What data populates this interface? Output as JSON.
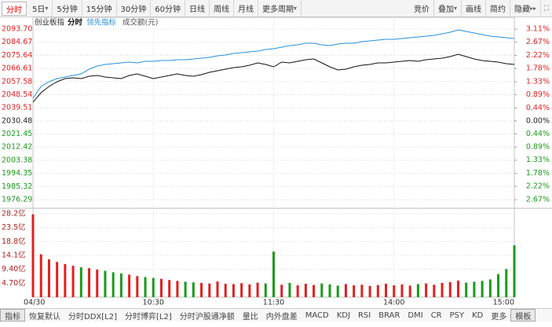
{
  "toolbar": {
    "left": [
      "分时",
      "5日",
      "5分钟",
      "15分钟",
      "30分钟",
      "60分钟",
      "日线",
      "周线",
      "月线",
      "更多周期"
    ],
    "right": [
      "竞价",
      "叠加",
      "画线",
      "简约",
      "隐藏"
    ]
  },
  "chart_data": [
    {
      "type": "line",
      "title": "创业板指",
      "xlim": [
        0,
        240
      ],
      "ylim": [
        1971.42,
        2098.57
      ],
      "y2lim": [
        -2.909,
        3.353
      ],
      "grid": true,
      "yticks": [
        {
          "value": 2093.7,
          "label": "2093.70"
        },
        2084.67,
        2075.64,
        2066.61,
        2057.58,
        2048.54,
        2039.51,
        2030.48,
        2021.45,
        2012.42,
        2003.38,
        1994.35,
        1985.32,
        1976.29
      ],
      "y2ticks": [
        {
          "value": 3.11,
          "label": "3.11%"
        },
        {
          "value": 2.67,
          "label": "2.67%"
        },
        {
          "value": 2.22,
          "label": "2.22%"
        },
        {
          "value": 1.78,
          "label": "1.78%"
        },
        {
          "value": 1.33,
          "label": "1.33%"
        },
        {
          "value": 0.89,
          "label": "0.89%"
        },
        {
          "value": 0.44,
          "label": "0.44%"
        },
        {
          "value": 0,
          "label": "0.00%"
        },
        {
          "value": -0.44,
          "label": "0.44%"
        },
        {
          "value": -0.89,
          "label": "0.89%"
        },
        {
          "value": -1.33,
          "label": "1.33%"
        },
        {
          "value": -1.78,
          "label": "1.78%"
        },
        {
          "value": -2.22,
          "label": "2.22%"
        },
        {
          "value": -2.67,
          "label": "2.67%"
        }
      ],
      "x": [
        0,
        4,
        8,
        12,
        16,
        20,
        24,
        28,
        32,
        36,
        40,
        44,
        48,
        52,
        56,
        60,
        64,
        68,
        72,
        76,
        80,
        84,
        88,
        92,
        96,
        100,
        104,
        108,
        112,
        116,
        120,
        124,
        128,
        132,
        136,
        140,
        144,
        148,
        152,
        156,
        160,
        164,
        168,
        172,
        176,
        180,
        184,
        188,
        192,
        196,
        200,
        204,
        208,
        212,
        216,
        220,
        224,
        228,
        232,
        236,
        240
      ],
      "series": [
        {
          "name": "分时",
          "color": "#111111",
          "values": [
            2043.39,
            2049.88,
            2054.21,
            2057.45,
            2059.62,
            2060.16,
            2059.62,
            2061.24,
            2061.78,
            2060.7,
            2060.16,
            2059.62,
            2061.78,
            2062.86,
            2061.24,
            2059.62,
            2060.7,
            2061.78,
            2062.86,
            2061.78,
            2061.24,
            2062.32,
            2063.94,
            2065.03,
            2066.11,
            2067.19,
            2067.73,
            2068.81,
            2070.44,
            2069.35,
            2067.73,
            2070.98,
            2070.44,
            2071.52,
            2072.6,
            2073.14,
            2070.44,
            2067.73,
            2065.57,
            2066.11,
            2067.73,
            2068.81,
            2069.35,
            2070.44,
            2070.44,
            2070.98,
            2071.52,
            2072.06,
            2071.52,
            2072.6,
            2073.14,
            2073.68,
            2074.76,
            2076.39,
            2074.76,
            2073.14,
            2072.06,
            2071.52,
            2070.98,
            2069.9,
            2069.35
          ]
        },
        {
          "name": "领先指标",
          "color": "#2a8fd8",
          "values": [
            2046.09,
            2054.21,
            2057.45,
            2059.62,
            2060.7,
            2061.78,
            2062.86,
            2066.11,
            2068.27,
            2069.35,
            2069.9,
            2070.44,
            2070.98,
            2070.44,
            2071.52,
            2071.52,
            2072.06,
            2072.06,
            2072.6,
            2072.6,
            2073.14,
            2073.68,
            2074.22,
            2075.31,
            2075.85,
            2076.93,
            2077.47,
            2078.01,
            2078.55,
            2079.63,
            2080.17,
            2081.26,
            2082.34,
            2082.88,
            2083.96,
            2083.96,
            2082.88,
            2082.34,
            2083.42,
            2083.96,
            2083.96,
            2085.04,
            2085.58,
            2086.13,
            2086.67,
            2086.67,
            2087.21,
            2087.75,
            2088.29,
            2088.83,
            2089.37,
            2090.45,
            2091.54,
            2093.16,
            2092.08,
            2090.99,
            2089.91,
            2088.83,
            2088.29,
            2087.75,
            2087.21
          ]
        }
      ]
    },
    {
      "type": "bar",
      "title": "成交额(元)",
      "xlim": [
        0,
        240
      ],
      "ylim": [
        0,
        29.5
      ],
      "grid": true,
      "up_color": "#e02020",
      "down_color": "#1a9a1a",
      "yticks": [
        {
          "value": 28.2,
          "label": "28.2亿"
        },
        {
          "value": 23.5,
          "label": "23.5亿"
        },
        {
          "value": 18.8,
          "label": "18.8亿"
        },
        {
          "value": 14.1,
          "label": "14.1亿"
        },
        {
          "value": 9.4,
          "label": "9.40亿"
        },
        {
          "value": 4.7,
          "label": "4.70亿"
        }
      ],
      "xticks": [
        {
          "value": 0,
          "label": "04/30"
        },
        {
          "value": 60,
          "label": "10:30"
        },
        {
          "value": 120,
          "label": "11:30"
        },
        {
          "value": 180,
          "label": "14:00"
        },
        {
          "value": 240,
          "label": "15:00"
        }
      ],
      "x": [
        0,
        4,
        8,
        12,
        16,
        20,
        24,
        28,
        32,
        36,
        40,
        44,
        48,
        52,
        56,
        60,
        64,
        68,
        72,
        76,
        80,
        84,
        88,
        92,
        96,
        100,
        104,
        108,
        112,
        116,
        120,
        124,
        128,
        132,
        136,
        140,
        144,
        148,
        152,
        156,
        160,
        164,
        168,
        172,
        176,
        180,
        184,
        188,
        192,
        196,
        200,
        204,
        208,
        212,
        216,
        220,
        224,
        228,
        232,
        236,
        240
      ],
      "values": [
        28.0,
        14.5,
        12.8,
        11.9,
        11.2,
        10.6,
        10.1,
        9.8,
        9.3,
        8.9,
        8.4,
        8.0,
        7.6,
        7.1,
        6.8,
        6.5,
        6.2,
        5.8,
        5.5,
        5.2,
        5.0,
        4.8,
        4.6,
        5.3,
        4.5,
        4.4,
        4.7,
        4.3,
        4.9,
        4.6,
        15.4,
        4.2,
        4.8,
        4.0,
        4.5,
        4.1,
        4.6,
        4.3,
        3.9,
        4.4,
        4.0,
        4.2,
        3.8,
        4.1,
        4.5,
        4.0,
        4.3,
        3.9,
        4.4,
        4.6,
        4.2,
        4.8,
        5.1,
        5.6,
        4.9,
        5.2,
        5.5,
        6.0,
        7.8,
        9.5,
        17.5
      ]
    }
  ],
  "bottom_tabs": [
    "指标",
    "恢复默认",
    "分时DDX[L2]",
    "分时博弈[L2]",
    "分时沪股通净额",
    "量比",
    "内外盘差",
    "MACD",
    "KDJ",
    "RSI",
    "BRAR",
    "DMI",
    "CR",
    "PSY",
    "KD",
    "更多",
    "模板"
  ]
}
